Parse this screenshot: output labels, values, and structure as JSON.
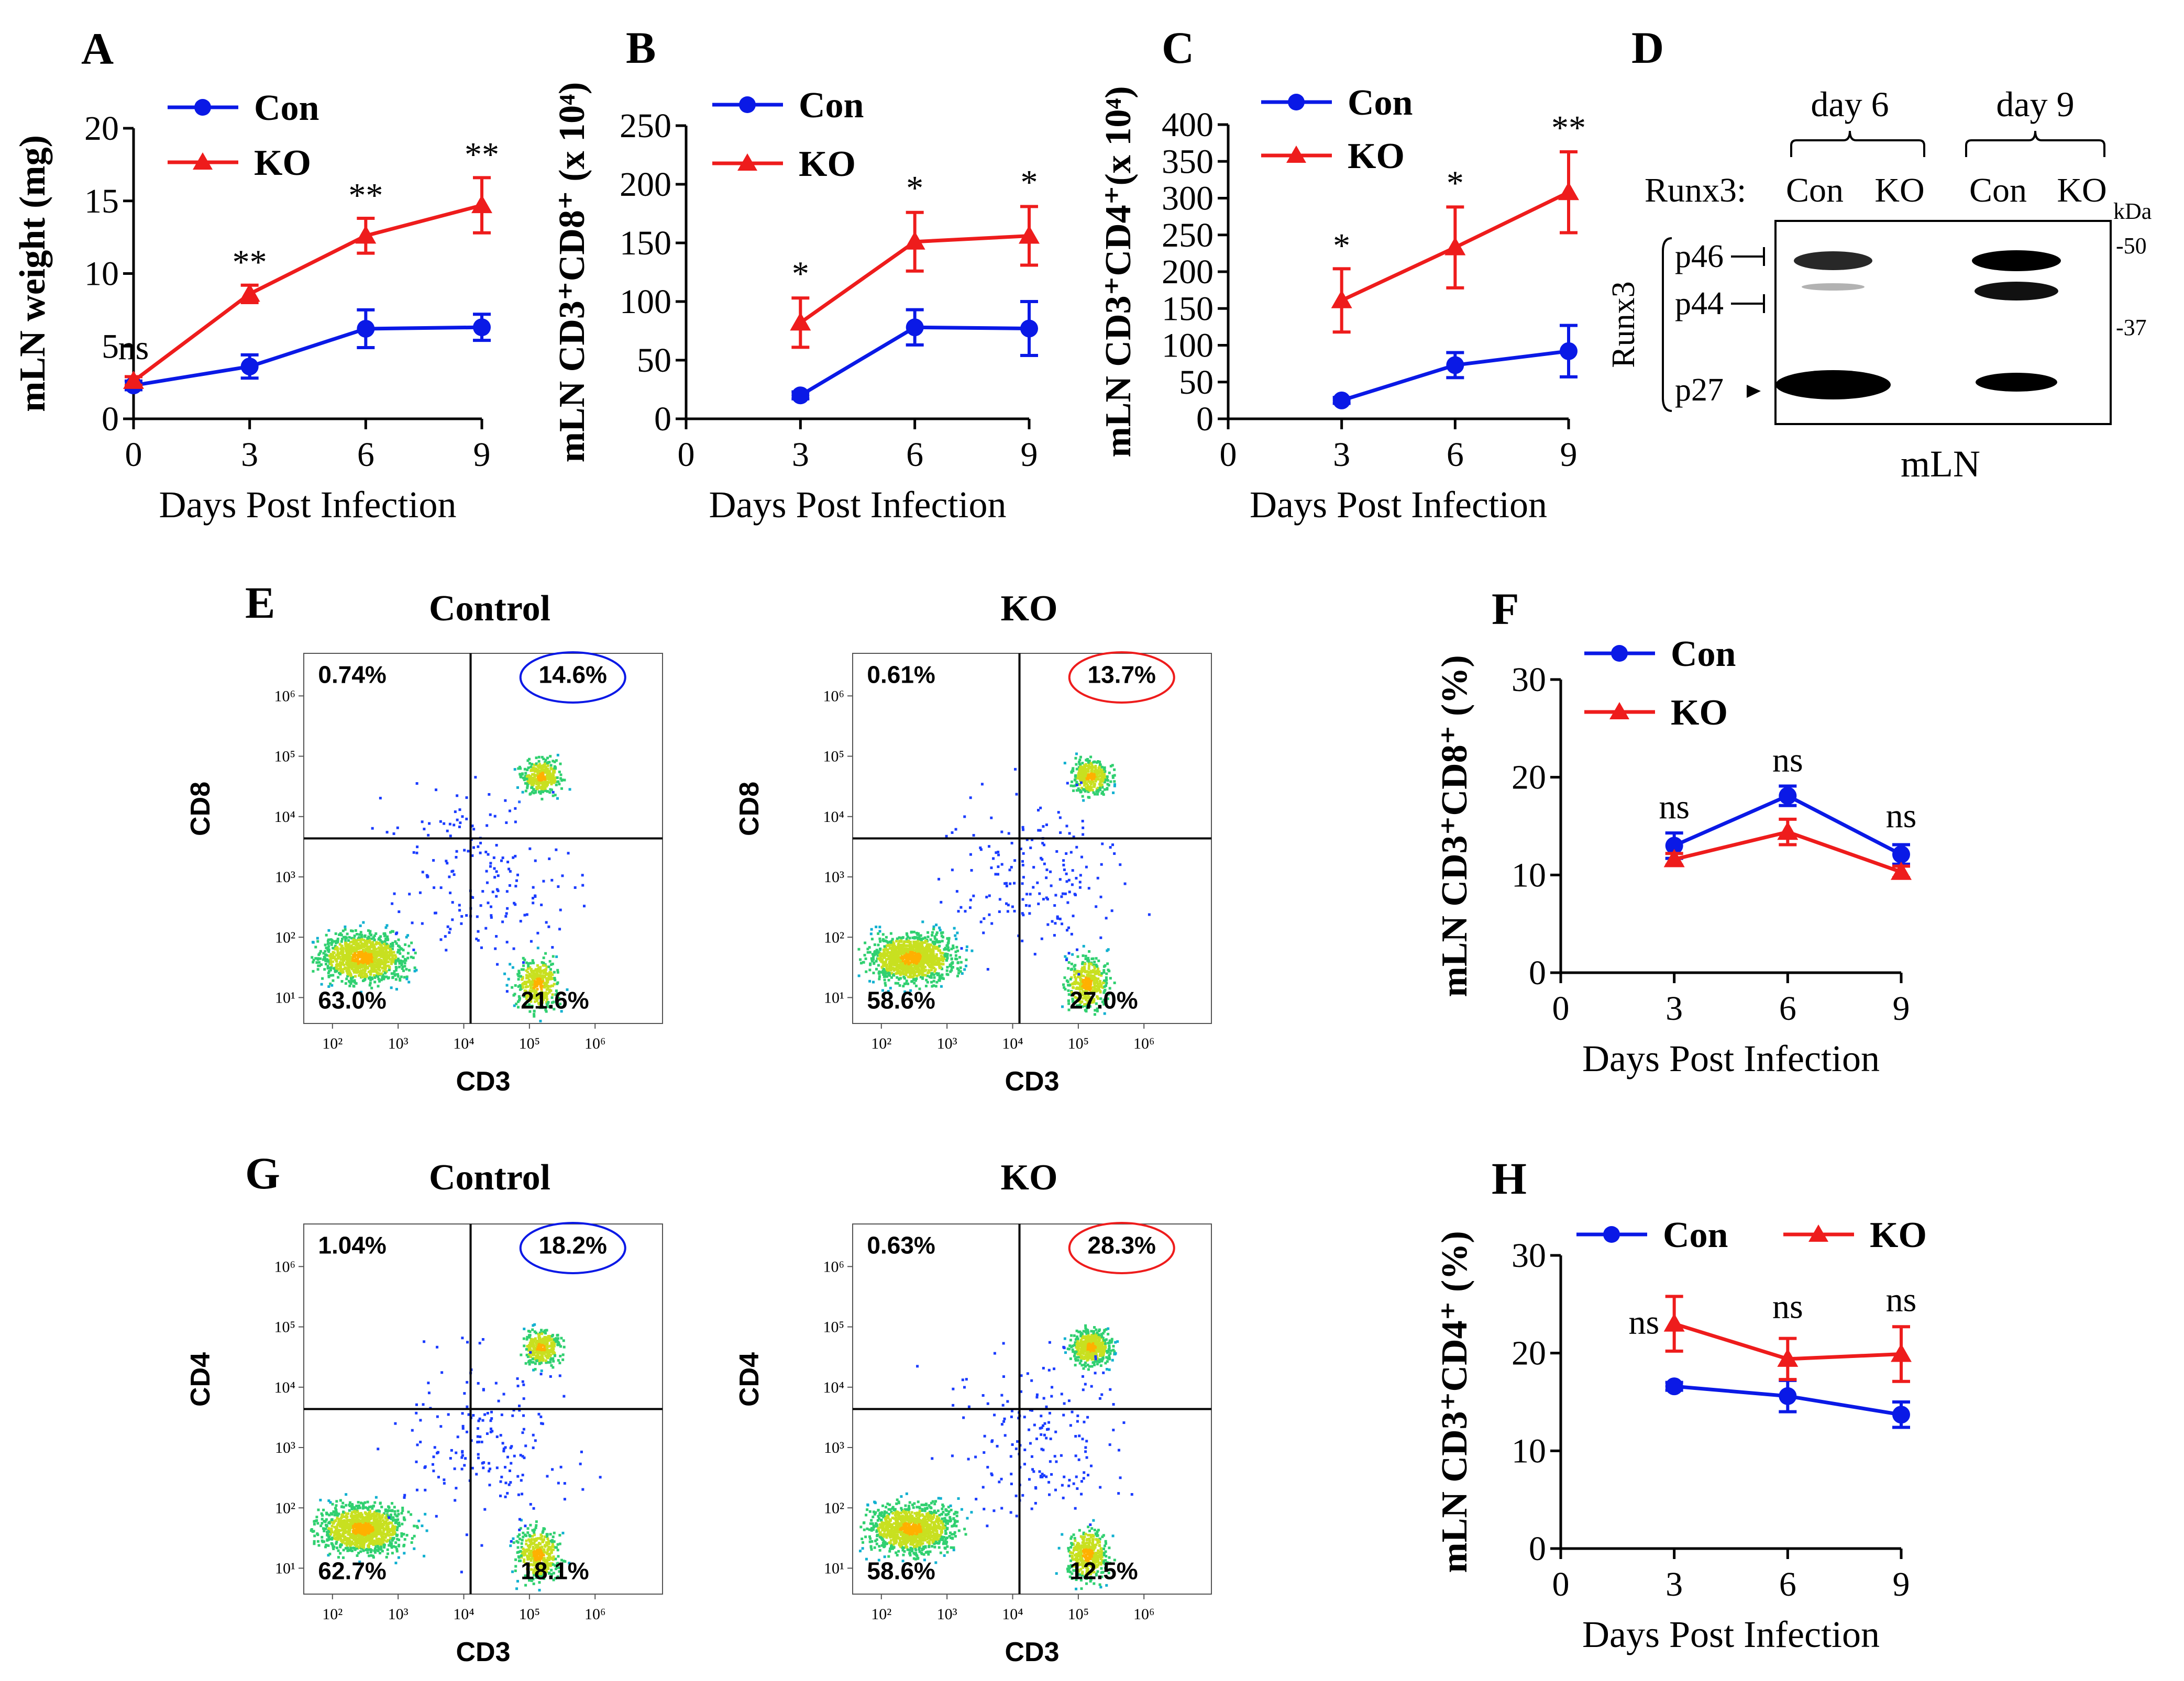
{
  "colors": {
    "con": "#0a19e6",
    "ko": "#ee1c1c",
    "axis": "#000000"
  },
  "panel_letters": [
    "A",
    "B",
    "C",
    "D",
    "E",
    "F",
    "G",
    "H"
  ],
  "chart_data": [
    {
      "panel": "A",
      "type": "line",
      "ylabel": "mLN weight (mg)",
      "xlabel": "Days Post Infection",
      "ylim": [
        0,
        20
      ],
      "yticks": [
        0,
        5,
        10,
        15,
        20
      ],
      "xticks": [
        0,
        3,
        6,
        9
      ],
      "legend_position": "top-left",
      "series": [
        {
          "name": "Con",
          "x": [
            0,
            3,
            6,
            9
          ],
          "y": [
            2.3,
            3.6,
            6.2,
            6.3
          ],
          "err": [
            0.3,
            0.8,
            1.3,
            0.9
          ]
        },
        {
          "name": "KO",
          "x": [
            0,
            3,
            6,
            9
          ],
          "y": [
            2.6,
            8.6,
            12.6,
            14.7
          ],
          "err": [
            0.3,
            0.6,
            1.2,
            1.9
          ]
        }
      ],
      "annotations": [
        {
          "x": 0,
          "y": 4.1,
          "text": "ns"
        },
        {
          "x": 3,
          "y": 10.0,
          "text": "**"
        },
        {
          "x": 6,
          "y": 14.6,
          "text": "**"
        },
        {
          "x": 9,
          "y": 17.4,
          "text": "**"
        }
      ]
    },
    {
      "panel": "B",
      "type": "line",
      "ylabel": "mLN CD3⁺CD8⁺ (x 10⁴)",
      "xlabel": "Days Post Infection",
      "ylim": [
        0,
        250
      ],
      "yticks": [
        0,
        50,
        100,
        150,
        200,
        250
      ],
      "xticks": [
        0,
        3,
        6,
        9
      ],
      "legend_position": "top-left",
      "series": [
        {
          "name": "Con",
          "x": [
            3,
            6,
            9
          ],
          "y": [
            20,
            78,
            77
          ],
          "err": [
            3,
            15,
            23
          ]
        },
        {
          "name": "KO",
          "x": [
            3,
            6,
            9
          ],
          "y": [
            82,
            151,
            156
          ],
          "err": [
            21,
            25,
            25
          ]
        }
      ],
      "annotations": [
        {
          "x": 3,
          "y": 114,
          "text": "*"
        },
        {
          "x": 6,
          "y": 187,
          "text": "*"
        },
        {
          "x": 9,
          "y": 192,
          "text": "*"
        }
      ]
    },
    {
      "panel": "C",
      "type": "line",
      "ylabel": "mLN CD3⁺CD4⁺(x 10⁴)",
      "xlabel": "Days Post Infection",
      "ylim": [
        0,
        400
      ],
      "yticks": [
        0,
        50,
        100,
        150,
        200,
        250,
        300,
        350,
        400
      ],
      "xticks": [
        0,
        3,
        6,
        9
      ],
      "legend_position": "top-left",
      "series": [
        {
          "name": "Con",
          "x": [
            3,
            6,
            9
          ],
          "y": [
            25,
            73,
            92
          ],
          "err": [
            4,
            17,
            35
          ]
        },
        {
          "name": "KO",
          "x": [
            3,
            6,
            9
          ],
          "y": [
            161,
            233,
            308
          ],
          "err": [
            43,
            55,
            55
          ]
        }
      ],
      "annotations": [
        {
          "x": 3,
          "y": 220,
          "text": "*"
        },
        {
          "x": 6,
          "y": 305,
          "text": "*"
        },
        {
          "x": 9,
          "y": 380,
          "text": "**"
        }
      ]
    },
    {
      "panel": "F",
      "type": "line",
      "ylabel": "mLN CD3⁺CD8⁺ (%)",
      "xlabel": "Days Post Infection",
      "ylim": [
        0,
        30
      ],
      "yticks": [
        0,
        10,
        20,
        30
      ],
      "xticks": [
        0,
        3,
        6,
        9
      ],
      "legend_position": "top-left",
      "series": [
        {
          "name": "Con",
          "x": [
            3,
            6,
            9
          ],
          "y": [
            13.0,
            18.1,
            12.1
          ],
          "err": [
            1.3,
            1.0,
            1.0
          ]
        },
        {
          "name": "KO",
          "x": [
            3,
            6,
            9
          ],
          "y": [
            11.6,
            14.4,
            10.3
          ],
          "err": [
            0.6,
            1.3,
            0.6
          ]
        }
      ],
      "annotations": [
        {
          "x": 3,
          "y": 15.8,
          "text": "ns"
        },
        {
          "x": 6,
          "y": 20.6,
          "text": "ns"
        },
        {
          "x": 9,
          "y": 14.9,
          "text": "ns"
        }
      ]
    },
    {
      "panel": "H",
      "type": "line",
      "ylabel": "mLN CD3⁺CD4⁺ (%)",
      "xlabel": "Days Post Infection",
      "ylim": [
        0,
        30
      ],
      "yticks": [
        0,
        10,
        20,
        30
      ],
      "xticks": [
        0,
        3,
        6,
        9
      ],
      "legend_position": "top",
      "series": [
        {
          "name": "Con",
          "x": [
            3,
            6,
            9
          ],
          "y": [
            16.6,
            15.6,
            13.7
          ],
          "err": [
            0.4,
            1.6,
            1.3
          ]
        },
        {
          "name": "KO",
          "x": [
            3,
            6,
            9
          ],
          "y": [
            23.0,
            19.4,
            19.9
          ],
          "err": [
            2.8,
            2.1,
            2.8
          ]
        }
      ],
      "annotations": [
        {
          "x": 2.2,
          "y": 22.0,
          "text": "ns"
        },
        {
          "x": 6,
          "y": 23.6,
          "text": "ns"
        },
        {
          "x": 9,
          "y": 24.3,
          "text": "ns"
        }
      ]
    }
  ],
  "western_blot": {
    "panel": "D",
    "days": [
      "day 6",
      "day 9"
    ],
    "row_label": "Runx3:",
    "lanes": [
      "Con",
      "KO",
      "Con",
      "KO"
    ],
    "kda_label": "kDa",
    "markers": [
      "-50",
      "-37"
    ],
    "bands": [
      "p46",
      "p44",
      "p27"
    ],
    "antibody": "Runx3",
    "tissue": "mLN"
  },
  "flow_plots": [
    {
      "panel": "E",
      "title": "Control",
      "xlabel": "CD3",
      "ylabel": "CD8",
      "quadrants": {
        "ul": "0.74%",
        "ur": "14.6%",
        "ll": "63.0%",
        "lr": "21.6%"
      },
      "circle": "con"
    },
    {
      "panel": "E",
      "title": "KO",
      "xlabel": "CD3",
      "ylabel": "CD8",
      "quadrants": {
        "ul": "0.61%",
        "ur": "13.7%",
        "ll": "58.6%",
        "lr": "27.0%"
      },
      "circle": "ko"
    },
    {
      "panel": "G",
      "title": "Control",
      "xlabel": "CD3",
      "ylabel": "CD4",
      "quadrants": {
        "ul": "1.04%",
        "ur": "18.2%",
        "ll": "62.7%",
        "lr": "18.1%"
      },
      "circle": "con"
    },
    {
      "panel": "G",
      "title": "KO",
      "xlabel": "CD3",
      "ylabel": "CD4",
      "quadrants": {
        "ul": "0.63%",
        "ur": "28.3%",
        "ll": "58.6%",
        "lr": "12.5%"
      },
      "circle": "ko"
    }
  ],
  "flow_ticks": {
    "x": [
      "10²",
      "10³",
      "10⁴",
      "10⁵",
      "10⁶"
    ],
    "y": [
      "10¹",
      "10²",
      "10³",
      "10⁴",
      "10⁵",
      "10⁶"
    ]
  }
}
